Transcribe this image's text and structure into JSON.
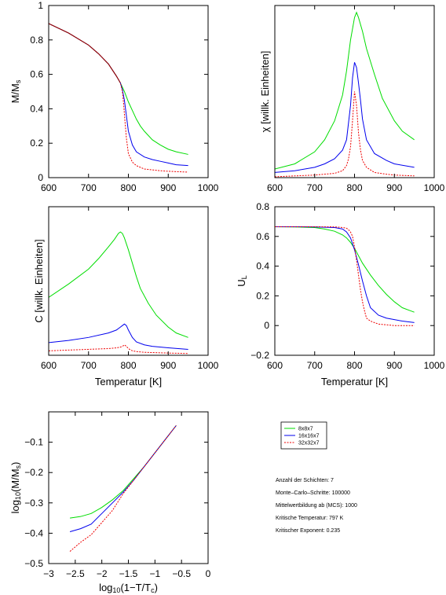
{
  "colors": {
    "s8": "#00dd00",
    "s16": "#0000ee",
    "s32": "#ee0000",
    "overlay": "#990000",
    "axis": "#000000"
  },
  "legend": {
    "entries": [
      {
        "label": "8x8x7",
        "color": "#00dd00",
        "dashed": false
      },
      {
        "label": "16x16x7",
        "color": "#0000ee",
        "dashed": false
      },
      {
        "label": "32x32x7",
        "color": "#ee0000",
        "dashed": true
      }
    ]
  },
  "info": {
    "lines": [
      "Anzahl der Schichten: 7",
      "Monte–Carlo–Schritte: 100000",
      "Mittelwertbildung ab (MCS): 1000",
      "Kritische Temperatur: 797 K",
      "Kritischer Exponent: 0.235"
    ]
  },
  "chart_data": [
    {
      "id": "magnetization",
      "type": "line",
      "ylabel": "M/M",
      "ylabel_sub": "s",
      "xlabel": "",
      "xlim": [
        600,
        1000
      ],
      "ylim": [
        0,
        1
      ],
      "xticks": [
        600,
        700,
        800,
        900,
        1000
      ],
      "yticks": [
        0,
        0.2,
        0.4,
        0.6,
        0.8,
        1
      ],
      "ytick_labels": [
        "0",
        "0.2",
        "0.4",
        "0.6",
        "0.8",
        "1"
      ],
      "grid": false,
      "series": [
        {
          "key": "s8",
          "dashed": false,
          "x": [
            600,
            650,
            700,
            725,
            750,
            770,
            780,
            790,
            800,
            810,
            820,
            830,
            840,
            860,
            880,
            900,
            920,
            950
          ],
          "y": [
            0.895,
            0.84,
            0.77,
            0.72,
            0.66,
            0.59,
            0.55,
            0.5,
            0.44,
            0.39,
            0.34,
            0.3,
            0.27,
            0.22,
            0.19,
            0.165,
            0.15,
            0.135
          ]
        },
        {
          "key": "s16",
          "dashed": false,
          "x": [
            600,
            650,
            700,
            725,
            750,
            770,
            780,
            785,
            790,
            795,
            800,
            810,
            820,
            840,
            860,
            880,
            900,
            920,
            950
          ],
          "y": [
            0.895,
            0.84,
            0.77,
            0.72,
            0.66,
            0.59,
            0.55,
            0.51,
            0.45,
            0.36,
            0.27,
            0.19,
            0.15,
            0.12,
            0.105,
            0.095,
            0.085,
            0.075,
            0.07
          ]
        },
        {
          "key": "s32",
          "dashed": true,
          "x": [
            600,
            650,
            700,
            725,
            750,
            770,
            780,
            785,
            788,
            791,
            795,
            800,
            810,
            820,
            830,
            840,
            860,
            880,
            900,
            920,
            950
          ],
          "y": [
            0.895,
            0.84,
            0.77,
            0.72,
            0.66,
            0.59,
            0.55,
            0.5,
            0.43,
            0.34,
            0.23,
            0.14,
            0.09,
            0.07,
            0.06,
            0.05,
            0.045,
            0.04,
            0.037,
            0.035,
            0.032
          ]
        },
        {
          "key": "overlay",
          "dashed": false,
          "x": [
            600,
            650,
            700,
            725,
            750,
            770,
            780
          ],
          "y": [
            0.895,
            0.84,
            0.77,
            0.72,
            0.66,
            0.59,
            0.55
          ]
        }
      ]
    },
    {
      "id": "susceptibility",
      "type": "line",
      "ylabel": "χ [willk. Einheiten]",
      "xlabel": "",
      "xlim": [
        600,
        1000
      ],
      "ylim": [
        0,
        1
      ],
      "xticks": [
        600,
        700,
        800,
        900,
        1000
      ],
      "yticks": [],
      "grid": false,
      "series": [
        {
          "key": "s8",
          "dashed": false,
          "x": [
            600,
            650,
            700,
            725,
            750,
            770,
            780,
            790,
            800,
            805,
            810,
            820,
            830,
            850,
            870,
            900,
            920,
            950
          ],
          "y": [
            0.05,
            0.08,
            0.15,
            0.22,
            0.33,
            0.48,
            0.62,
            0.8,
            0.93,
            0.96,
            0.93,
            0.85,
            0.75,
            0.6,
            0.46,
            0.33,
            0.27,
            0.22
          ]
        },
        {
          "key": "s16",
          "dashed": false,
          "x": [
            600,
            650,
            700,
            725,
            750,
            770,
            780,
            790,
            795,
            800,
            805,
            810,
            815,
            820,
            830,
            850,
            880,
            900,
            950
          ],
          "y": [
            0.03,
            0.04,
            0.06,
            0.08,
            0.11,
            0.16,
            0.22,
            0.42,
            0.58,
            0.67,
            0.64,
            0.55,
            0.45,
            0.34,
            0.22,
            0.14,
            0.1,
            0.08,
            0.06
          ]
        },
        {
          "key": "s32",
          "dashed": true,
          "x": [
            600,
            650,
            700,
            750,
            770,
            780,
            785,
            790,
            795,
            800,
            805,
            810,
            815,
            820,
            830,
            850,
            880,
            900,
            950
          ],
          "y": [
            0.005,
            0.01,
            0.015,
            0.025,
            0.04,
            0.07,
            0.11,
            0.18,
            0.33,
            0.5,
            0.42,
            0.26,
            0.16,
            0.1,
            0.06,
            0.03,
            0.02,
            0.015,
            0.01
          ]
        }
      ]
    },
    {
      "id": "heatcapacity",
      "type": "line",
      "ylabel": "C [willk. Einheiten]",
      "xlabel": "Temperatur [K]",
      "xlim": [
        600,
        1000
      ],
      "ylim": [
        0,
        1
      ],
      "xticks": [
        600,
        700,
        800,
        900,
        1000
      ],
      "yticks": [],
      "grid": false,
      "series": [
        {
          "key": "s8",
          "dashed": false,
          "x": [
            600,
            650,
            700,
            725,
            750,
            765,
            775,
            780,
            785,
            790,
            800,
            810,
            820,
            830,
            850,
            870,
            900,
            920,
            950
          ],
          "y": [
            0.39,
            0.48,
            0.58,
            0.65,
            0.73,
            0.78,
            0.82,
            0.83,
            0.82,
            0.79,
            0.71,
            0.62,
            0.53,
            0.45,
            0.35,
            0.27,
            0.19,
            0.15,
            0.12
          ]
        },
        {
          "key": "s16",
          "dashed": false,
          "x": [
            600,
            650,
            700,
            750,
            770,
            780,
            785,
            790,
            795,
            800,
            810,
            820,
            840,
            860,
            900,
            950
          ],
          "y": [
            0.085,
            0.1,
            0.12,
            0.15,
            0.17,
            0.19,
            0.2,
            0.21,
            0.2,
            0.17,
            0.12,
            0.09,
            0.07,
            0.06,
            0.05,
            0.04
          ]
        },
        {
          "key": "s32",
          "dashed": true,
          "x": [
            600,
            650,
            700,
            750,
            770,
            780,
            785,
            790,
            795,
            800,
            810,
            820,
            840,
            900,
            950
          ],
          "y": [
            0.03,
            0.035,
            0.04,
            0.045,
            0.05,
            0.055,
            0.06,
            0.07,
            0.06,
            0.045,
            0.03,
            0.025,
            0.02,
            0.015,
            0.012
          ]
        }
      ]
    },
    {
      "id": "binder",
      "type": "line",
      "ylabel": "U",
      "ylabel_sub": "L",
      "xlabel": "Temperatur [K]",
      "xlim": [
        600,
        1000
      ],
      "ylim": [
        -0.2,
        0.8
      ],
      "xticks": [
        600,
        700,
        800,
        900,
        1000
      ],
      "yticks": [
        -0.2,
        0,
        0.2,
        0.4,
        0.6,
        0.8
      ],
      "ytick_labels": [
        "−0.2",
        "0",
        "0.2",
        "0.4",
        "0.6",
        "0.8"
      ],
      "grid": false,
      "series": [
        {
          "key": "s8",
          "dashed": false,
          "x": [
            600,
            650,
            700,
            725,
            750,
            770,
            780,
            790,
            800,
            810,
            820,
            840,
            860,
            880,
            900,
            920,
            940,
            950
          ],
          "y": [
            0.665,
            0.664,
            0.66,
            0.65,
            0.635,
            0.61,
            0.59,
            0.56,
            0.52,
            0.47,
            0.42,
            0.34,
            0.27,
            0.21,
            0.16,
            0.12,
            0.1,
            0.09
          ]
        },
        {
          "key": "s16",
          "dashed": false,
          "x": [
            600,
            650,
            700,
            750,
            770,
            780,
            790,
            800,
            810,
            820,
            830,
            840,
            860,
            880,
            900,
            920,
            950
          ],
          "y": [
            0.665,
            0.665,
            0.664,
            0.66,
            0.65,
            0.63,
            0.59,
            0.51,
            0.41,
            0.3,
            0.2,
            0.12,
            0.07,
            0.05,
            0.04,
            0.03,
            0.02
          ]
        },
        {
          "key": "s32",
          "dashed": true,
          "x": [
            600,
            650,
            700,
            750,
            770,
            780,
            785,
            790,
            795,
            800,
            805,
            810,
            815,
            820,
            825,
            830,
            840,
            860,
            880,
            900,
            920,
            950
          ],
          "y": [
            0.665,
            0.665,
            0.665,
            0.664,
            0.66,
            0.655,
            0.645,
            0.63,
            0.6,
            0.53,
            0.44,
            0.34,
            0.24,
            0.16,
            0.1,
            0.05,
            0.03,
            0.01,
            0.005,
            0.0,
            0.0,
            0.0
          ]
        }
      ]
    },
    {
      "id": "loglog",
      "type": "line",
      "ylabel": "log",
      "ylabel_sub": "10",
      "ylabel_rest": "(M/M",
      "ylabel_sub2": "s",
      "ylabel_end": ")",
      "xlabel": "log",
      "xlabel_sub": "10",
      "xlabel_rest": "(1−T/T",
      "xlabel_sub2": "c",
      "xlabel_end": ")",
      "xlim": [
        -3,
        0
      ],
      "ylim": [
        -0.5,
        0
      ],
      "xticks": [
        -3,
        -2.5,
        -2,
        -1.5,
        -1,
        -0.5,
        0
      ],
      "xtick_labels": [
        "−3",
        "−2.5",
        "−2",
        "−1.5",
        "−1",
        "−0.5",
        "0"
      ],
      "yticks": [
        -0.5,
        -0.4,
        -0.3,
        -0.2,
        -0.1
      ],
      "ytick_labels": [
        "−0.5",
        "−0.4",
        "−0.3",
        "−0.2",
        "−0.1"
      ],
      "grid": false,
      "series": [
        {
          "key": "s8",
          "dashed": false,
          "x": [
            -2.6,
            -2.4,
            -2.2,
            -2.0,
            -1.8,
            -1.6,
            -1.4,
            -1.2,
            -1.0,
            -0.8,
            -0.6
          ],
          "y": [
            -0.35,
            -0.345,
            -0.335,
            -0.315,
            -0.29,
            -0.26,
            -0.22,
            -0.18,
            -0.135,
            -0.09,
            -0.045
          ]
        },
        {
          "key": "s16",
          "dashed": false,
          "x": [
            -2.6,
            -2.4,
            -2.2,
            -2.0,
            -1.8,
            -1.6,
            -1.4,
            -1.2,
            -1.0,
            -0.8,
            -0.6
          ],
          "y": [
            -0.395,
            -0.385,
            -0.37,
            -0.335,
            -0.3,
            -0.265,
            -0.225,
            -0.18,
            -0.135,
            -0.09,
            -0.045
          ]
        },
        {
          "key": "s32",
          "dashed": true,
          "x": [
            -2.6,
            -2.4,
            -2.2,
            -2.0,
            -1.8,
            -1.6,
            -1.4,
            -1.2,
            -1.0,
            -0.8,
            -0.6
          ],
          "y": [
            -0.46,
            -0.43,
            -0.405,
            -0.365,
            -0.325,
            -0.27,
            -0.225,
            -0.18,
            -0.135,
            -0.09,
            -0.045
          ]
        }
      ]
    }
  ]
}
